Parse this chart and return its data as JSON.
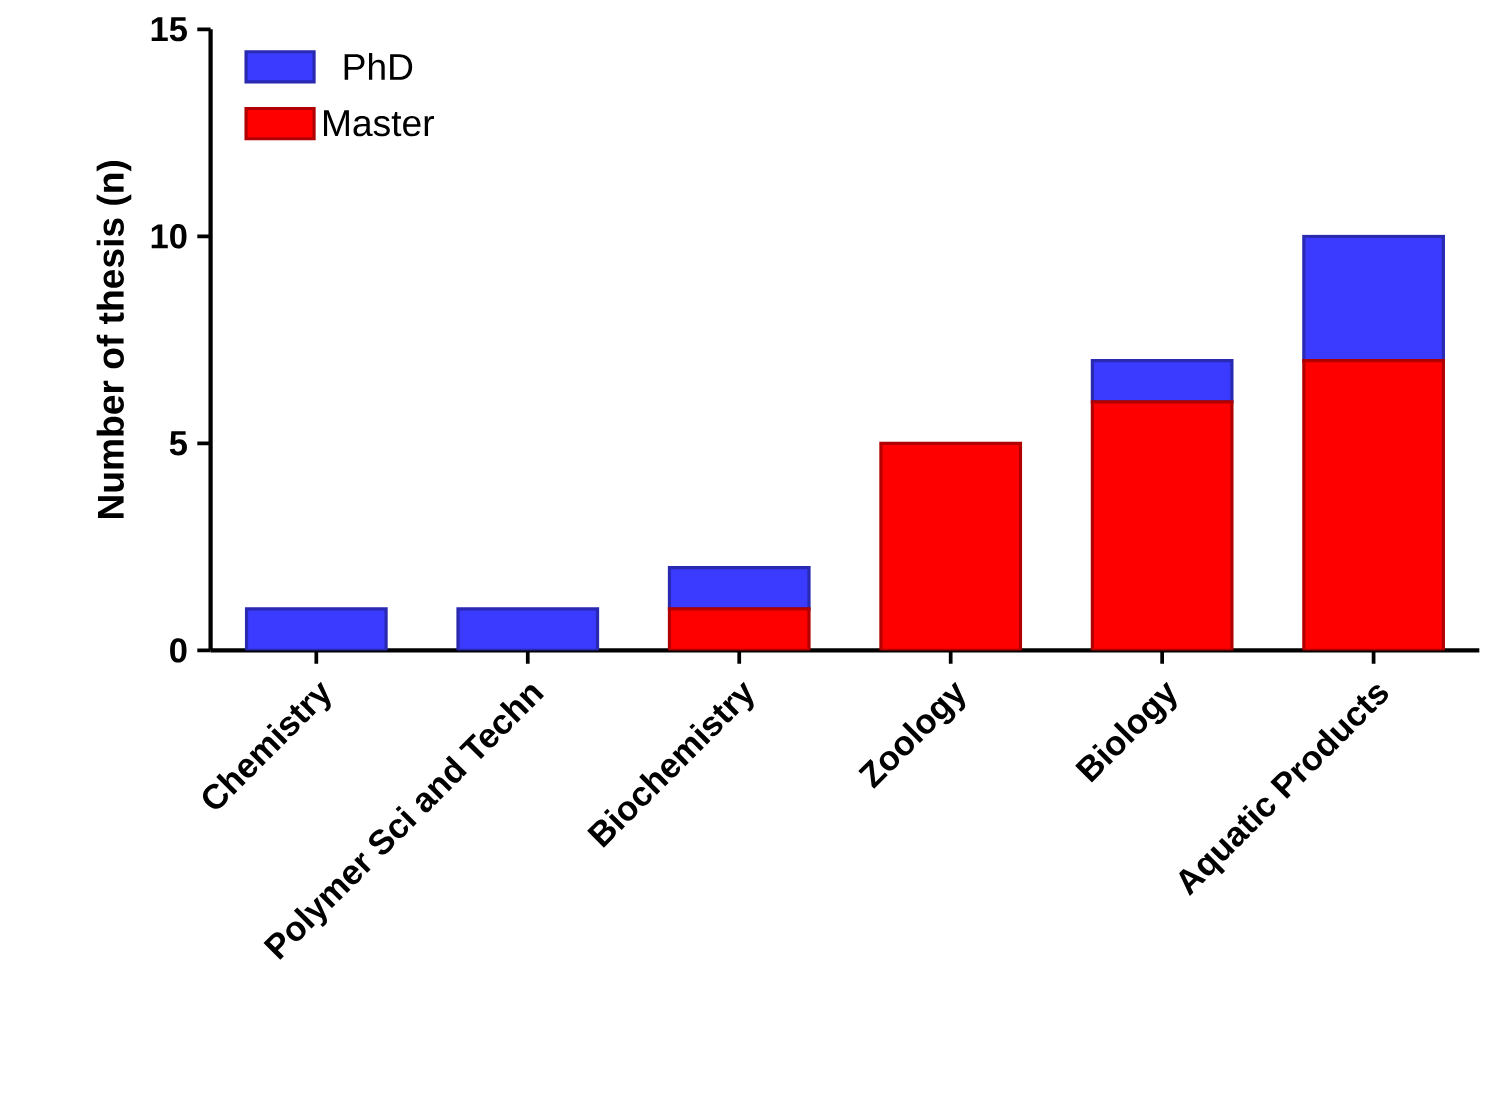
{
  "chart_data": {
    "type": "bar",
    "stacked": true,
    "ylabel": "Number of thesis (n)",
    "categories": [
      "Chemistry",
      "Polymer Sci and Techn",
      "Biochemistry",
      "Zoology",
      "Biology",
      "Aquatic Products"
    ],
    "series": [
      {
        "name": "Master",
        "color": "#ff0000",
        "values": [
          0,
          0,
          1,
          5,
          6,
          7
        ]
      },
      {
        "name": "PhD",
        "color": "#3b3bff",
        "values": [
          1,
          1,
          1,
          0,
          1,
          3
        ]
      }
    ],
    "ylim": [
      0,
      15
    ],
    "yticks": [
      0,
      5,
      10,
      15
    ],
    "legend": "top left",
    "grid": false
  }
}
